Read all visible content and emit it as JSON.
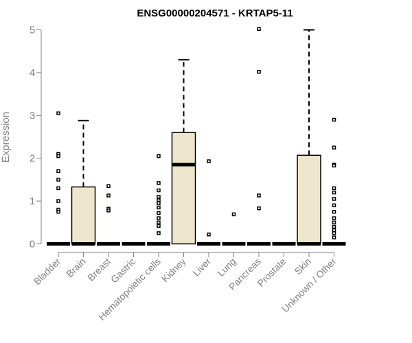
{
  "chart_data": {
    "type": "boxplot",
    "title": "ENSG00000204571 - KRTAP5-11",
    "xlabel": "",
    "ylabel": "Expression",
    "ylim": [
      0,
      5
    ],
    "yticks": [
      0,
      1,
      2,
      3,
      4,
      5
    ],
    "box_color": "#EDE6CC",
    "grid": false,
    "categories": [
      "Bladder",
      "Brain",
      "Breast",
      "Gastric",
      "Hematopoietic cells",
      "Kidney",
      "Liver",
      "Lung",
      "Pancreas",
      "Prostate",
      "Skin",
      "Unknown / Other"
    ],
    "boxes": [
      {
        "name": "Bladder",
        "q1": 0,
        "median": 0,
        "q3": 0,
        "whisker_low": 0,
        "whisker_high": 0,
        "outliers": [
          3.05,
          2.1,
          2.05,
          1.7,
          1.5,
          1.3,
          1.0,
          0.8,
          0.75
        ]
      },
      {
        "name": "Brain",
        "q1": 0,
        "median": 0,
        "q3": 1.33,
        "whisker_low": 0,
        "whisker_high": 2.88,
        "outliers": []
      },
      {
        "name": "Breast",
        "q1": 0,
        "median": 0,
        "q3": 0,
        "whisker_low": 0,
        "whisker_high": 0,
        "outliers": [
          1.35,
          1.13,
          0.82,
          0.78
        ]
      },
      {
        "name": "Gastric",
        "q1": 0,
        "median": 0,
        "q3": 0,
        "whisker_low": 0,
        "whisker_high": 0,
        "outliers": []
      },
      {
        "name": "Hematopoietic cells",
        "q1": 0,
        "median": 0,
        "q3": 0,
        "whisker_low": 0,
        "whisker_high": 0,
        "outliers": [
          2.05,
          1.42,
          1.25,
          1.1,
          1.02,
          0.95,
          0.85,
          0.72,
          0.6,
          0.5,
          0.42,
          0.25
        ]
      },
      {
        "name": "Kidney",
        "q1": 0,
        "median": 1.85,
        "q3": 2.6,
        "whisker_low": 0,
        "whisker_high": 4.3,
        "outliers": []
      },
      {
        "name": "Liver",
        "q1": 0,
        "median": 0,
        "q3": 0,
        "whisker_low": 0,
        "whisker_high": 0,
        "outliers": [
          1.93,
          0.22
        ]
      },
      {
        "name": "Lung",
        "q1": 0,
        "median": 0,
        "q3": 0,
        "whisker_low": 0,
        "whisker_high": 0,
        "outliers": [
          0.69
        ]
      },
      {
        "name": "Pancreas",
        "q1": 0,
        "median": 0,
        "q3": 0,
        "whisker_low": 0,
        "whisker_high": 0,
        "outliers": [
          5.02,
          4.02,
          1.13,
          0.83
        ]
      },
      {
        "name": "Prostate",
        "q1": 0,
        "median": 0,
        "q3": 0,
        "whisker_low": 0,
        "whisker_high": 0,
        "outliers": []
      },
      {
        "name": "Skin",
        "q1": 0,
        "median": 0,
        "q3": 2.07,
        "whisker_low": 0,
        "whisker_high": 5.0,
        "outliers": []
      },
      {
        "name": "Unknown / Other",
        "q1": 0,
        "median": 0,
        "q3": 0,
        "whisker_low": 0,
        "whisker_high": 0,
        "outliers": [
          2.9,
          2.25,
          1.85,
          1.83,
          1.3,
          1.2,
          1.05,
          0.9,
          0.75,
          0.6,
          0.5,
          0.4,
          0.32,
          0.25,
          0.15
        ]
      }
    ]
  }
}
